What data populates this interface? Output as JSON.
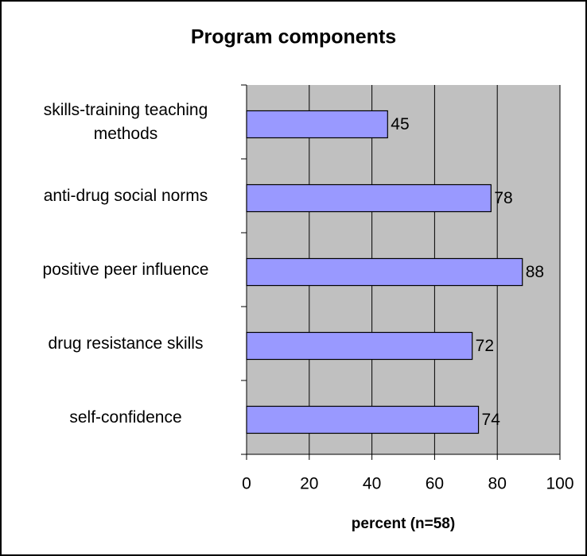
{
  "chart_data": {
    "type": "bar",
    "orientation": "horizontal",
    "title": "Program components",
    "categories": [
      "skills-training teaching methods",
      "anti-drug social norms",
      "positive peer influence",
      "drug resistance skills",
      "self-confidence"
    ],
    "values": [
      45,
      78,
      88,
      72,
      74
    ],
    "color": "#9999ff",
    "xlabel": "percent (n=58)",
    "xlim": [
      0,
      100
    ],
    "xticks": [
      0,
      20,
      40,
      60,
      80,
      100
    ],
    "grid": true
  }
}
